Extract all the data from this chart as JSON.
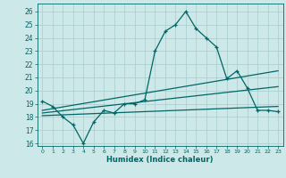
{
  "xlabel": "Humidex (Indice chaleur)",
  "bg_color": "#cce8e8",
  "grid_color": "#a8cccc",
  "line_color": "#006666",
  "xlim": [
    -0.5,
    23.5
  ],
  "ylim": [
    15.8,
    26.6
  ],
  "yticks": [
    16,
    17,
    18,
    19,
    20,
    21,
    22,
    23,
    24,
    25,
    26
  ],
  "xticks": [
    0,
    1,
    2,
    3,
    4,
    5,
    6,
    7,
    8,
    9,
    10,
    11,
    12,
    13,
    14,
    15,
    16,
    17,
    18,
    19,
    20,
    21,
    22,
    23
  ],
  "main_x": [
    0,
    1,
    2,
    3,
    4,
    5,
    6,
    7,
    8,
    9,
    10,
    11,
    12,
    13,
    14,
    15,
    16,
    17,
    18,
    19,
    20,
    21,
    22,
    23
  ],
  "main_y": [
    19.2,
    18.8,
    18.0,
    17.4,
    16.0,
    17.6,
    18.5,
    18.3,
    19.0,
    19.0,
    19.3,
    23.0,
    24.5,
    25.0,
    26.0,
    24.7,
    24.0,
    23.3,
    20.9,
    21.5,
    20.2,
    18.5,
    18.5,
    18.4
  ],
  "trend1_x": [
    0,
    23
  ],
  "trend1_y": [
    18.5,
    21.5
  ],
  "trend2_x": [
    0,
    23
  ],
  "trend2_y": [
    18.3,
    20.3
  ],
  "trend3_x": [
    0,
    23
  ],
  "trend3_y": [
    18.1,
    18.8
  ]
}
